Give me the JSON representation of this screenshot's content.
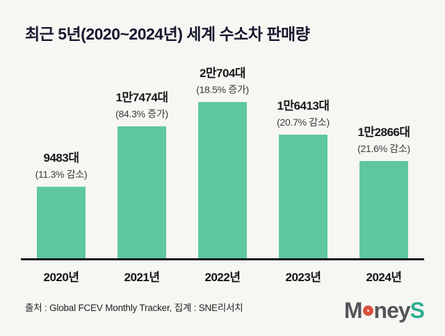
{
  "title": "최근 5년(2020~2024년) 세계 수소차 판매량",
  "chart_data": {
    "type": "bar",
    "title": "최근 5년(2020~2024년) 세계 수소차 판매량",
    "categories": [
      "2020년",
      "2021년",
      "2022년",
      "2023년",
      "2024년"
    ],
    "values": [
      9483,
      17474,
      20704,
      16413,
      12866
    ],
    "value_labels": [
      "9483대",
      "1만7474대",
      "2만704대",
      "1만6413대",
      "1만2866대"
    ],
    "change_labels": [
      "(11.3% 감소)",
      "(84.3% 증가)",
      "(18.5% 증가)",
      "(20.7% 감소)",
      "(21.6% 감소)"
    ],
    "bar_color": "#5fc7a0",
    "xlabel": "",
    "ylabel": "",
    "ylim": [
      0,
      20704
    ],
    "grid": false,
    "legend": "none"
  },
  "footer": {
    "source": "출처 : Global FCEV Monthly Tracker, 집계 : SNE리서치",
    "logo": {
      "part1": "M",
      "part2": "ney",
      "part3": "S"
    }
  }
}
